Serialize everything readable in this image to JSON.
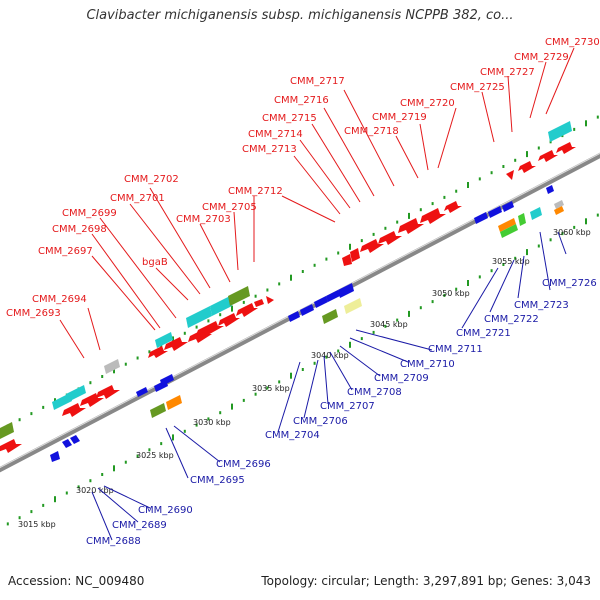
{
  "title": "Clavibacter michiganensis subsp. michiganensis NCPPB 382, co...",
  "footer": {
    "accession": "Accession: NC_009480",
    "topology": "Topology: circular; Length: 3,297,891 bp; Genes: 3,043"
  },
  "colors": {
    "forward_gene": "#ee1111",
    "reverse_gene": "#1111dd",
    "cyan": "#22cccc",
    "olive": "#669922",
    "orange": "#ff8800",
    "green": "#44cc33",
    "grey": "#bbbbbb",
    "pale_yellow": "#eeee99",
    "backbone": "#888888",
    "tick": "#229922",
    "top_label": "#e41a1c",
    "bottom_label": "#1a1aa6"
  },
  "scale_labels": [
    "3015 kbp",
    "3020 kbp",
    "3025 kbp",
    "3030 kbp",
    "3035 kbp",
    "3040 kbp",
    "3045 kbp",
    "3050 kbp",
    "3055 kbp",
    "3060 kbp"
  ],
  "top_labels": [
    "CMM_2693",
    "CMM_2694",
    "CMM_2697",
    "CMM_2698",
    "CMM_2699",
    "bgaB",
    "CMM_2701",
    "CMM_2702",
    "CMM_2703",
    "CMM_2705",
    "CMM_2712",
    "CMM_2713",
    "CMM_2714",
    "CMM_2715",
    "CMM_2716",
    "CMM_2717",
    "CMM_2718",
    "CMM_2719",
    "CMM_2720",
    "CMM_2725",
    "CMM_2727",
    "CMM_2729",
    "CMM_2730"
  ],
  "bottom_labels": [
    "CMM_2688",
    "CMM_2689",
    "CMM_2690",
    "CMM_2695",
    "CMM_2696",
    "CMM_2704",
    "CMM_2706",
    "CMM_2707",
    "CMM_2708",
    "CMM_2709",
    "CMM_2710",
    "CMM_2711",
    "CMM_2721",
    "CMM_2722",
    "CMM_2723",
    "CMM_2726"
  ]
}
